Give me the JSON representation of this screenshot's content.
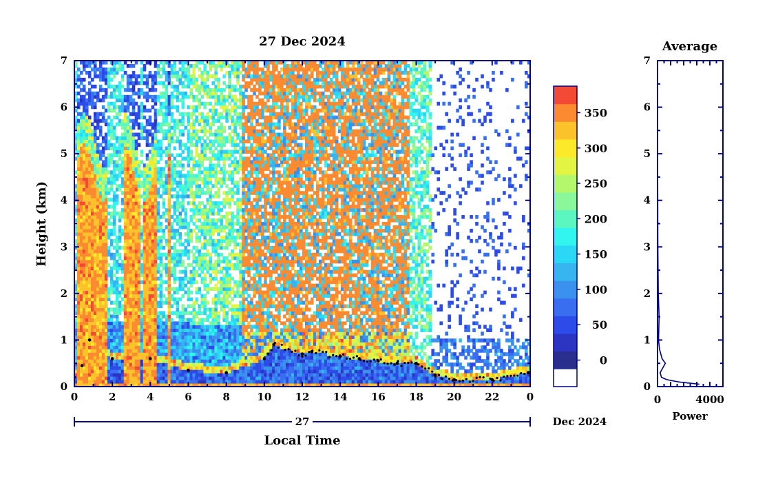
{
  "chart_data": [
    {
      "type": "heatmap",
      "title": "27 Dec 2024",
      "xlabel": "Local Time",
      "ylabel": "Height (km)",
      "xlim": [
        0,
        24
      ],
      "ylim": [
        0,
        7
      ],
      "x_ticks": [
        "0",
        "2",
        "4",
        "6",
        "8",
        "10",
        "12",
        "14",
        "16",
        "18",
        "20",
        "22",
        "0"
      ],
      "y_ticks": [
        "0",
        "1",
        "2",
        "3",
        "4",
        "5",
        "6",
        "7"
      ],
      "date_axis": {
        "day_label": "27",
        "month_label": "Dec 2024"
      },
      "colorbar": {
        "ticks": [
          "0",
          "50",
          "100",
          "150",
          "200",
          "250",
          "300",
          "350"
        ],
        "levels": [
          -25,
          0,
          25,
          50,
          75,
          100,
          125,
          150,
          175,
          200,
          225,
          250,
          275,
          300,
          325,
          350,
          375
        ],
        "colors": [
          "#ffffff",
          "#2a2e8c",
          "#2b35c2",
          "#2d4be8",
          "#3a6ef0",
          "#3a92ee",
          "#37b5f0",
          "#2ad8f5",
          "#33f5f0",
          "#5cf7c0",
          "#8af79a",
          "#b2f76c",
          "#e3f542",
          "#fcea2a",
          "#fcc22c",
          "#fc8a30",
          "#f24a34"
        ]
      },
      "features": {
        "high_intensity_bands_hours": [
          [
            0.2,
            1.8
          ],
          [
            2.6,
            3.0
          ],
          [
            3.1,
            3.5
          ],
          [
            3.6,
            4.0
          ],
          [
            4.0,
            4.4
          ],
          [
            4.9,
            5.1
          ]
        ],
        "mixed_layer_top_km": [
          [
            0.0,
            0.2
          ],
          [
            0.4,
            0.45
          ],
          [
            0.8,
            1.0
          ],
          [
            2.0,
            0.6
          ],
          [
            4.0,
            0.6
          ],
          [
            6.0,
            0.35
          ],
          [
            8.0,
            0.3
          ],
          [
            10.0,
            0.6
          ],
          [
            10.5,
            0.9
          ],
          [
            12.0,
            0.7
          ],
          [
            12.5,
            0.75
          ],
          [
            14.0,
            0.65
          ],
          [
            15.0,
            0.6
          ],
          [
            16.0,
            0.55
          ],
          [
            17.0,
            0.5
          ],
          [
            18.0,
            0.5
          ],
          [
            19.0,
            0.25
          ],
          [
            20.0,
            0.15
          ],
          [
            22.0,
            0.15
          ],
          [
            23.9,
            0.3
          ]
        ]
      }
    },
    {
      "type": "line",
      "title": "Average",
      "xlabel": "Power",
      "ylabel": "",
      "xlim": [
        0,
        5000
      ],
      "ylim": [
        0,
        7
      ],
      "x_ticks": [
        "0",
        "4000"
      ],
      "y_ticks": [
        "0",
        "1",
        "2",
        "3",
        "4",
        "5",
        "6",
        "7"
      ],
      "series": [
        {
          "x": [
            3200,
            1600,
            700,
            300,
            200,
            600,
            350,
            150,
            80,
            120,
            60,
            40,
            25,
            15,
            10,
            8,
            6,
            5,
            5
          ],
          "y": [
            0.05,
            0.1,
            0.15,
            0.2,
            0.3,
            0.5,
            0.6,
            0.8,
            1.0,
            1.5,
            2.0,
            2.5,
            3.0,
            4.0,
            4.5,
            5.0,
            5.5,
            6.0,
            7.0
          ]
        }
      ]
    }
  ]
}
